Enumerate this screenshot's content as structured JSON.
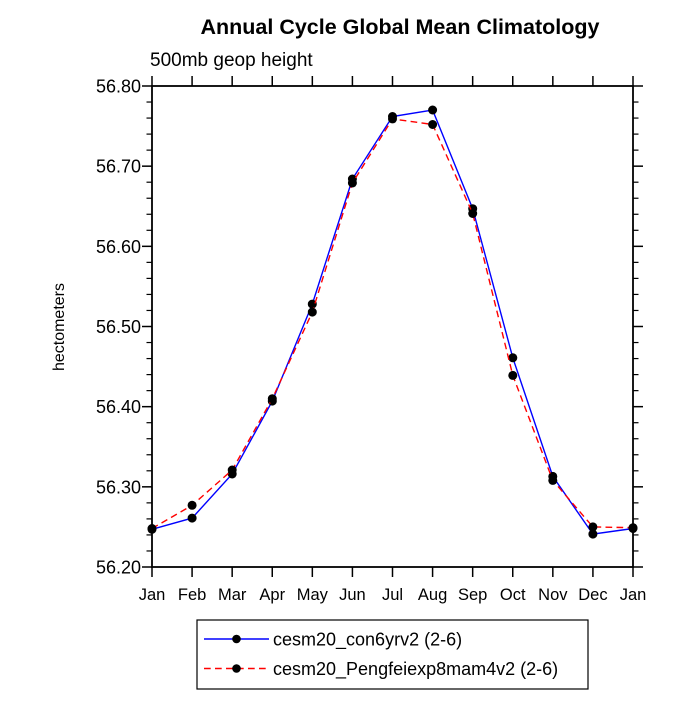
{
  "chart_data": {
    "type": "line",
    "title": "Annual Cycle Global Mean Climatology",
    "subtitle": "500mb geop height",
    "xlabel": "",
    "ylabel": "hectometers",
    "categories": [
      "Jan",
      "Feb",
      "Mar",
      "Apr",
      "May",
      "Jun",
      "Jul",
      "Aug",
      "Sep",
      "Oct",
      "Nov",
      "Dec",
      "Jan"
    ],
    "ylim": [
      56.2,
      56.8
    ],
    "y_major_ticks": [
      56.2,
      56.3,
      56.4,
      56.5,
      56.6,
      56.7,
      56.8
    ],
    "y_tick_labels": [
      "56.20",
      "56.30",
      "56.40",
      "56.50",
      "56.60",
      "56.70",
      "56.80"
    ],
    "y_minor_step": 0.02,
    "grid": false,
    "legend_position": "bottom-center",
    "axis_color": "#000000",
    "series": [
      {
        "name": "cesm20_con6yrv2 (2-6)",
        "line_color": "#0000ff",
        "line_style": "solid",
        "marker": "filled-circle",
        "marker_color": "#000000",
        "values": [
          56.247,
          56.261,
          56.316,
          56.407,
          56.528,
          56.684,
          56.762,
          56.77,
          56.647,
          56.461,
          56.313,
          56.241,
          56.248
        ]
      },
      {
        "name": "cesm20_Pengfeiexp8mam4v2 (2-6)",
        "line_color": "#ff0000",
        "line_style": "dashed",
        "marker": "filled-circle",
        "marker_color": "#000000",
        "values": [
          56.248,
          56.277,
          56.321,
          56.41,
          56.518,
          56.679,
          56.759,
          56.752,
          56.641,
          56.439,
          56.308,
          56.25,
          56.249
        ]
      }
    ]
  }
}
